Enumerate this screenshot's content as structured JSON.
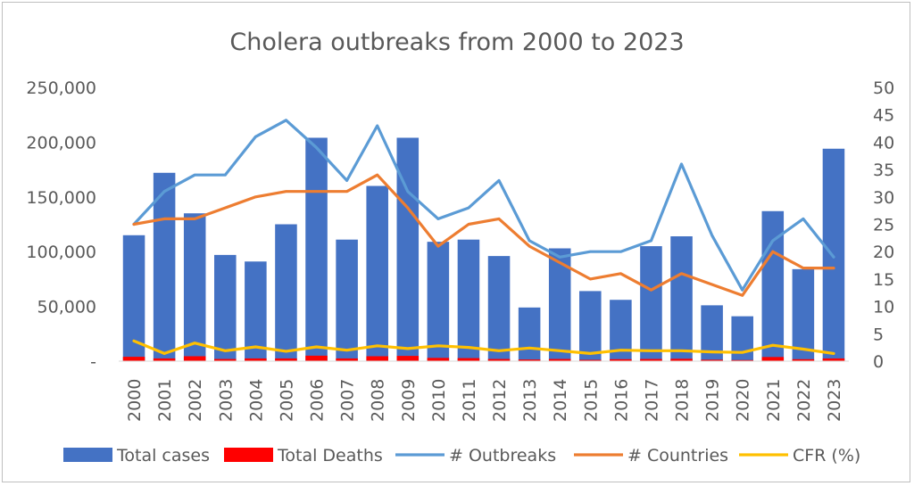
{
  "chart_data": {
    "type": "bar",
    "title": "Cholera outbreaks from 2000 to 2023",
    "categories": [
      "2000",
      "2001",
      "2002",
      "2003",
      "2004",
      "2005",
      "2006",
      "2007",
      "2008",
      "2009",
      "2010",
      "2011",
      "2012",
      "2013",
      "2014",
      "2015",
      "2016",
      "2017",
      "2018",
      "2019",
      "2020",
      "2021",
      "2022",
      "2023"
    ],
    "y_left": {
      "min": 0,
      "max": 250000,
      "ticks": [
        "-",
        "50,000",
        "100,000",
        "150,000",
        "200,000",
        "250,000"
      ],
      "tick_values": [
        0,
        50000,
        100000,
        150000,
        200000,
        250000
      ]
    },
    "y_right": {
      "min": 0,
      "max": 50,
      "ticks": [
        "0",
        "5",
        "10",
        "15",
        "20",
        "25",
        "30",
        "35",
        "40",
        "45",
        "50"
      ],
      "tick_values": [
        0,
        5,
        10,
        15,
        20,
        25,
        30,
        35,
        40,
        45,
        50
      ]
    },
    "grid": false,
    "legend_position": "bottom",
    "series": [
      {
        "name": "Total cases",
        "kind": "bar",
        "axis": "left",
        "color": "#4472c4",
        "values": [
          115000,
          172000,
          135000,
          97000,
          91000,
          125000,
          204000,
          111000,
          160000,
          204000,
          109000,
          111000,
          96000,
          49000,
          103000,
          64000,
          56000,
          105000,
          114000,
          51000,
          41000,
          137000,
          84000,
          194000
        ]
      },
      {
        "name": "Total Deaths",
        "kind": "bar",
        "axis": "left",
        "color": "#ff0000",
        "values": [
          4000,
          2500,
          4500,
          2000,
          2500,
          2500,
          5000,
          2500,
          4500,
          4800,
          3000,
          2800,
          2000,
          1500,
          2000,
          1200,
          1800,
          2000,
          2200,
          1300,
          1000,
          3800,
          1800,
          2500
        ]
      },
      {
        "name": "# Outbreaks",
        "kind": "line",
        "axis": "right",
        "color": "#5b9bd5",
        "values": [
          25,
          31,
          34,
          34,
          41,
          44,
          39,
          33,
          43,
          31,
          26,
          28,
          33,
          22,
          19,
          20,
          20,
          22,
          36,
          23,
          13,
          22,
          26,
          19
        ]
      },
      {
        "name": "# Countries",
        "kind": "line",
        "axis": "right",
        "color": "#ed7d31",
        "values": [
          25,
          26,
          26,
          28,
          30,
          31,
          31,
          31,
          34,
          28,
          21,
          25,
          26,
          21,
          18,
          15,
          16,
          13,
          16,
          14,
          12,
          20,
          17,
          17
        ]
      },
      {
        "name": "CFR (%)",
        "kind": "line",
        "axis": "right",
        "color": "#ffc000",
        "values": [
          3.7,
          1.4,
          3.3,
          1.9,
          2.6,
          1.8,
          2.6,
          2.0,
          2.8,
          2.3,
          2.8,
          2.5,
          1.9,
          2.4,
          1.9,
          1.4,
          2.0,
          1.9,
          1.9,
          1.7,
          1.6,
          2.9,
          2.2,
          1.4
        ]
      }
    ]
  }
}
